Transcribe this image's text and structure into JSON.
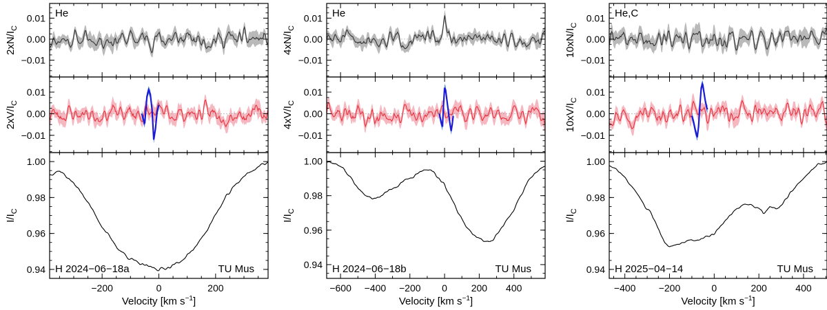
{
  "colors": {
    "n_line": "#333333",
    "n_band": "#b9b9b9",
    "v_line": "#e8303c",
    "v_band": "#f6b8c0",
    "feat_line": "#1b1bd6",
    "feat_band": "#5b8fe6",
    "i_line": "#000000",
    "axis": "#000000"
  },
  "chart_data": [
    {
      "type": "line",
      "panel": "left",
      "x_label_text": "Velocity [km s",
      "x_label_sup": "−1",
      "x_label_close": "]",
      "xlim": [
        -385,
        385
      ],
      "xticks": [
        -200,
        0,
        200
      ],
      "xtick_labels": [
        "−200",
        "0",
        "200"
      ],
      "x_minor_step": 50,
      "null_panel": {
        "ylabel_main": "2xN/I",
        "ylabel_sub": "C",
        "element": "He",
        "ylim": [
          -0.018,
          0.017
        ],
        "yticks": [
          0.01,
          0.0,
          -0.01
        ],
        "ytick_labels": [
          "0.01",
          "0.00",
          "−0.01"
        ],
        "series": "noise",
        "amplitude": 0.0035,
        "seed": 11
      },
      "stokes_v_panel": {
        "ylabel_main": "2xV/I",
        "ylabel_sub": "C",
        "ylim": [
          -0.018,
          0.017
        ],
        "yticks": [
          0.01,
          0.0,
          -0.01
        ],
        "ytick_labels": [
          "0.01",
          "0.00",
          "−0.01"
        ],
        "series": "noise",
        "amplitude": 0.0035,
        "seed": 23,
        "signature": {
          "x_range": [
            -60,
            0
          ],
          "points": [
            [
              -60,
              0.0
            ],
            [
              -50,
              -0.005
            ],
            [
              -42,
              0.008
            ],
            [
              -36,
              0.011
            ],
            [
              -30,
              0.009
            ],
            [
              -24,
              0.002
            ],
            [
              -18,
              -0.012
            ],
            [
              -12,
              -0.007
            ],
            [
              -6,
              0.001
            ],
            [
              0,
              0.004
            ]
          ]
        }
      },
      "intensity_panel": {
        "ylabel_main": "I/I",
        "ylabel_sub": "C",
        "ylim": [
          0.935,
          1.005
        ],
        "yticks": [
          1.0,
          0.98,
          0.96,
          0.94
        ],
        "ytick_labels": [
          "1.00",
          "0.98",
          "0.96",
          "0.94"
        ],
        "profile": [
          [
            -385,
            0.993
          ],
          [
            -350,
            0.995
          ],
          [
            -320,
            0.991
          ],
          [
            -290,
            0.986
          ],
          [
            -260,
            0.98
          ],
          [
            -230,
            0.972
          ],
          [
            -200,
            0.964
          ],
          [
            -170,
            0.957
          ],
          [
            -140,
            0.951
          ],
          [
            -110,
            0.947
          ],
          [
            -80,
            0.944
          ],
          [
            -50,
            0.942
          ],
          [
            -20,
            0.941
          ],
          [
            0,
            0.94
          ],
          [
            30,
            0.941
          ],
          [
            60,
            0.943
          ],
          [
            90,
            0.946
          ],
          [
            120,
            0.951
          ],
          [
            150,
            0.957
          ],
          [
            180,
            0.965
          ],
          [
            210,
            0.973
          ],
          [
            240,
            0.981
          ],
          [
            270,
            0.987
          ],
          [
            300,
            0.992
          ],
          [
            330,
            0.995
          ],
          [
            360,
            0.998
          ],
          [
            385,
            1.0
          ]
        ],
        "wiggle": 0.0007,
        "seed": 37,
        "label_left": "H 2024−06−18a",
        "label_right": "TU Mus"
      }
    },
    {
      "type": "line",
      "panel": "middle",
      "x_label_text": "Velocity [km s",
      "x_label_sup": "−1",
      "x_label_close": "]",
      "xlim": [
        -680,
        580
      ],
      "xticks": [
        -600,
        -400,
        -200,
        0,
        200,
        400
      ],
      "xtick_labels": [
        "−600",
        "−400",
        "−200",
        "0",
        "200",
        "400"
      ],
      "x_minor_step": 100,
      "null_panel": {
        "ylabel_main": "4xN/I",
        "ylabel_sub": "C",
        "element": "He",
        "ylim": [
          -0.018,
          0.017
        ],
        "yticks": [
          0.01,
          0.0,
          -0.01
        ],
        "ytick_labels": [
          "0.01",
          "0.00",
          "−0.01"
        ],
        "series": "noise",
        "amplitude": 0.003,
        "seed": 51,
        "spike": {
          "x": 0,
          "value": 0.012
        }
      },
      "stokes_v_panel": {
        "ylabel_main": "4xV/I",
        "ylabel_sub": "C",
        "ylim": [
          -0.018,
          0.017
        ],
        "yticks": [
          0.01,
          0.0,
          -0.01
        ],
        "ytick_labels": [
          "0.01",
          "0.00",
          "−0.01"
        ],
        "series": "noise",
        "amplitude": 0.0035,
        "seed": 63,
        "signature": {
          "x_range": [
            -30,
            50
          ],
          "points": [
            [
              -30,
              0.0
            ],
            [
              -20,
              -0.004
            ],
            [
              -12,
              -0.006
            ],
            [
              -6,
              0.004
            ],
            [
              0,
              0.012
            ],
            [
              6,
              0.011
            ],
            [
              14,
              0.006
            ],
            [
              22,
              0.001
            ],
            [
              30,
              -0.004
            ],
            [
              38,
              -0.008
            ],
            [
              44,
              -0.005
            ],
            [
              50,
              -0.001
            ]
          ]
        }
      },
      "intensity_panel": {
        "ylabel_main": "I/I",
        "ylabel_sub": "C",
        "ylim": [
          0.932,
          1.005
        ],
        "yticks": [
          1.0,
          0.98,
          0.96,
          0.94
        ],
        "ytick_labels": [
          "1.00",
          "0.98",
          "0.96",
          "0.94"
        ],
        "profile": [
          [
            -680,
            1.0
          ],
          [
            -640,
            0.999
          ],
          [
            -600,
            0.997
          ],
          [
            -560,
            0.993
          ],
          [
            -520,
            0.987
          ],
          [
            -480,
            0.982
          ],
          [
            -440,
            0.979
          ],
          [
            -400,
            0.978
          ],
          [
            -360,
            0.98
          ],
          [
            -320,
            0.983
          ],
          [
            -280,
            0.985
          ],
          [
            -240,
            0.988
          ],
          [
            -200,
            0.99
          ],
          [
            -160,
            0.992
          ],
          [
            -120,
            0.995
          ],
          [
            -90,
            0.995
          ],
          [
            -60,
            0.993
          ],
          [
            -30,
            0.99
          ],
          [
            0,
            0.986
          ],
          [
            40,
            0.978
          ],
          [
            80,
            0.97
          ],
          [
            120,
            0.963
          ],
          [
            160,
            0.958
          ],
          [
            200,
            0.955
          ],
          [
            240,
            0.953
          ],
          [
            280,
            0.955
          ],
          [
            320,
            0.96
          ],
          [
            360,
            0.965
          ],
          [
            400,
            0.972
          ],
          [
            440,
            0.98
          ],
          [
            480,
            0.988
          ],
          [
            520,
            0.993
          ],
          [
            550,
            0.996
          ],
          [
            580,
            0.997
          ]
        ],
        "wiggle": 0.0007,
        "seed": 77,
        "label_left": "H 2024−06−18b",
        "label_right": "TU Mus"
      }
    },
    {
      "type": "line",
      "panel": "right",
      "x_label_text": "Velocity [km s",
      "x_label_sup": "−1",
      "x_label_close": "]",
      "xlim": [
        -470,
        505
      ],
      "xticks": [
        -400,
        -200,
        0,
        200,
        400
      ],
      "xtick_labels": [
        "−400",
        "−200",
        "0",
        "200",
        "400"
      ],
      "x_minor_step": 50,
      "null_panel": {
        "ylabel_main": "10xN/I",
        "ylabel_sub": "C",
        "element": "He,C",
        "ylim": [
          -0.018,
          0.017
        ],
        "yticks": [
          0.01,
          0.0,
          -0.01
        ],
        "ytick_labels": [
          "0.01",
          "0.00",
          "−0.01"
        ],
        "series": "noise",
        "amplitude": 0.004,
        "seed": 89
      },
      "stokes_v_panel": {
        "ylabel_main": "10xV/I",
        "ylabel_sub": "C",
        "ylim": [
          -0.018,
          0.017
        ],
        "yticks": [
          0.01,
          0.0,
          -0.01
        ],
        "ytick_labels": [
          "0.01",
          "0.00",
          "−0.01"
        ],
        "series": "noise",
        "amplitude": 0.0035,
        "seed": 97,
        "signature": {
          "x_range": [
            -100,
            -30
          ],
          "points": [
            [
              -100,
              -0.001
            ],
            [
              -92,
              -0.004
            ],
            [
              -84,
              -0.008
            ],
            [
              -76,
              -0.011
            ],
            [
              -70,
              -0.006
            ],
            [
              -64,
              0.004
            ],
            [
              -58,
              0.012
            ],
            [
              -52,
              0.014
            ],
            [
              -46,
              0.01
            ],
            [
              -40,
              0.006
            ],
            [
              -34,
              0.003
            ],
            [
              -30,
              0.002
            ]
          ]
        }
      },
      "intensity_panel": {
        "ylabel_main": "I/I",
        "ylabel_sub": "C",
        "ylim": [
          0.935,
          1.005
        ],
        "yticks": [
          1.0,
          0.98,
          0.96,
          0.94
        ],
        "ytick_labels": [
          "1.00",
          "0.98",
          "0.96",
          "0.94"
        ],
        "profile": [
          [
            -470,
            0.998
          ],
          [
            -440,
            0.996
          ],
          [
            -400,
            0.991
          ],
          [
            -360,
            0.984
          ],
          [
            -320,
            0.977
          ],
          [
            -280,
            0.97
          ],
          [
            -250,
            0.962
          ],
          [
            -220,
            0.955
          ],
          [
            -200,
            0.952
          ],
          [
            -170,
            0.954
          ],
          [
            -140,
            0.955
          ],
          [
            -100,
            0.956
          ],
          [
            -60,
            0.957
          ],
          [
            -20,
            0.959
          ],
          [
            0,
            0.96
          ],
          [
            40,
            0.966
          ],
          [
            80,
            0.971
          ],
          [
            120,
            0.975
          ],
          [
            160,
            0.976
          ],
          [
            200,
            0.974
          ],
          [
            220,
            0.971
          ],
          [
            250,
            0.975
          ],
          [
            290,
            0.974
          ],
          [
            320,
            0.979
          ],
          [
            350,
            0.984
          ],
          [
            380,
            0.988
          ],
          [
            420,
            0.993
          ],
          [
            450,
            0.997
          ],
          [
            480,
            0.999
          ],
          [
            505,
            1.0
          ]
        ],
        "wiggle": 0.0006,
        "seed": 103,
        "label_left": "H 2025−04−14",
        "label_right": "TU Mus"
      }
    }
  ]
}
